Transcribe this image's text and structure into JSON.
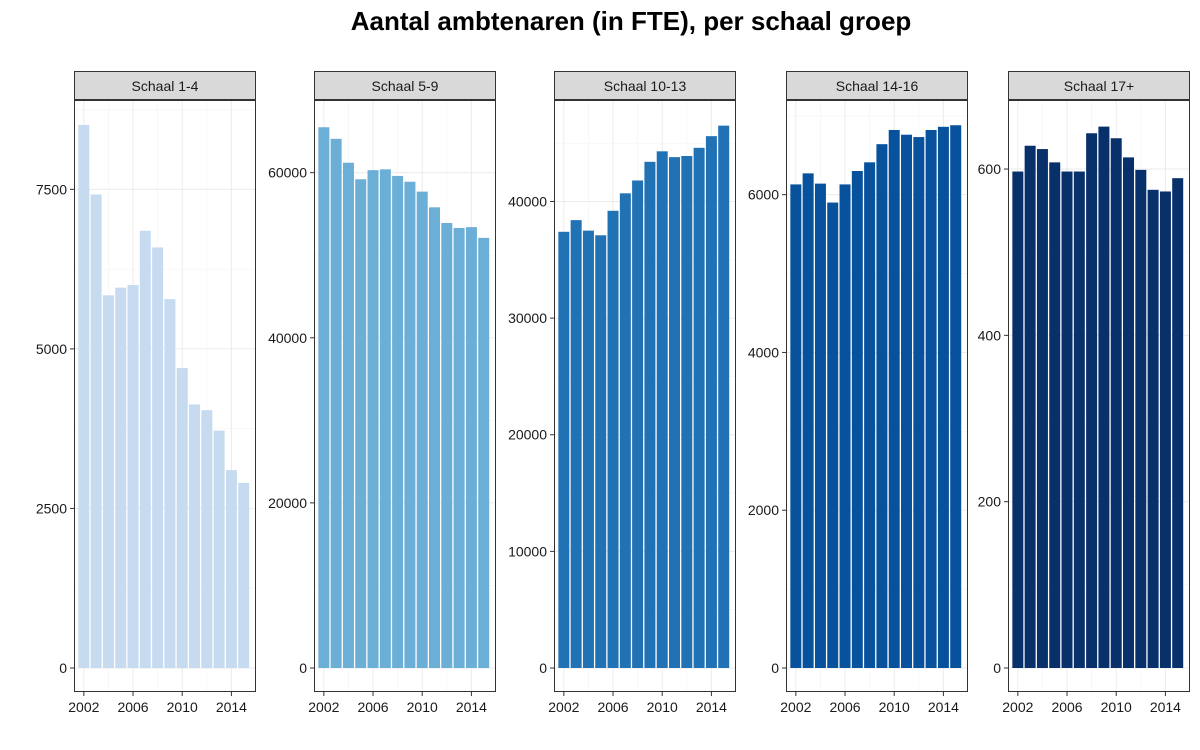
{
  "chart_data": {
    "type": "bar",
    "title": "Aantal ambtenaren (in FTE), per schaal groep",
    "xlabel": "",
    "ylabel": "",
    "x": [
      2002,
      2003,
      2004,
      2005,
      2006,
      2007,
      2008,
      2009,
      2010,
      2011,
      2012,
      2013,
      2014,
      2015
    ],
    "xticks": [
      "2002",
      "2006",
      "2010",
      "2014"
    ],
    "grid": true,
    "facets": [
      {
        "label": "Schaal 1-4",
        "color": "#c6dbef",
        "ylim": [
          0,
          8900
        ],
        "yticks": [
          "0",
          "2500",
          "5000",
          "7500"
        ],
        "values": [
          8510,
          7420,
          5840,
          5960,
          6000,
          6850,
          6590,
          5780,
          4700,
          4130,
          4040,
          3720,
          3100,
          2900
        ]
      },
      {
        "label": "Schaal 5-9",
        "color": "#6baed6",
        "ylim": [
          0,
          68800
        ],
        "yticks": [
          "0",
          "20000",
          "40000",
          "60000"
        ],
        "values": [
          65500,
          64100,
          61200,
          59200,
          60300,
          60400,
          59600,
          58900,
          57700,
          55800,
          53900,
          53300,
          53400,
          52100
        ]
      },
      {
        "label": "Schaal 10-13",
        "color": "#2171b5",
        "ylim": [
          0,
          48700
        ],
        "yticks": [
          "0",
          "10000",
          "20000",
          "30000",
          "40000"
        ],
        "values": [
          37400,
          38400,
          37500,
          37100,
          39200,
          40700,
          41800,
          43400,
          44300,
          43800,
          43900,
          44600,
          45600,
          46500
        ]
      },
      {
        "label": "Schaal 14-16",
        "color": "#08519c",
        "ylim": [
          0,
          7200
        ],
        "yticks": [
          "0",
          "2000",
          "4000",
          "6000"
        ],
        "values": [
          6130,
          6270,
          6140,
          5900,
          6130,
          6300,
          6410,
          6640,
          6820,
          6760,
          6730,
          6820,
          6860,
          6880
        ]
      },
      {
        "label": "Schaal 17+",
        "color": "#08306b",
        "ylim": [
          0,
          683
        ],
        "yticks": [
          "0",
          "200",
          "400",
          "600"
        ],
        "values": [
          597,
          628,
          624,
          608,
          597,
          597,
          643,
          651,
          637,
          614,
          599,
          575,
          573,
          589
        ]
      }
    ]
  }
}
